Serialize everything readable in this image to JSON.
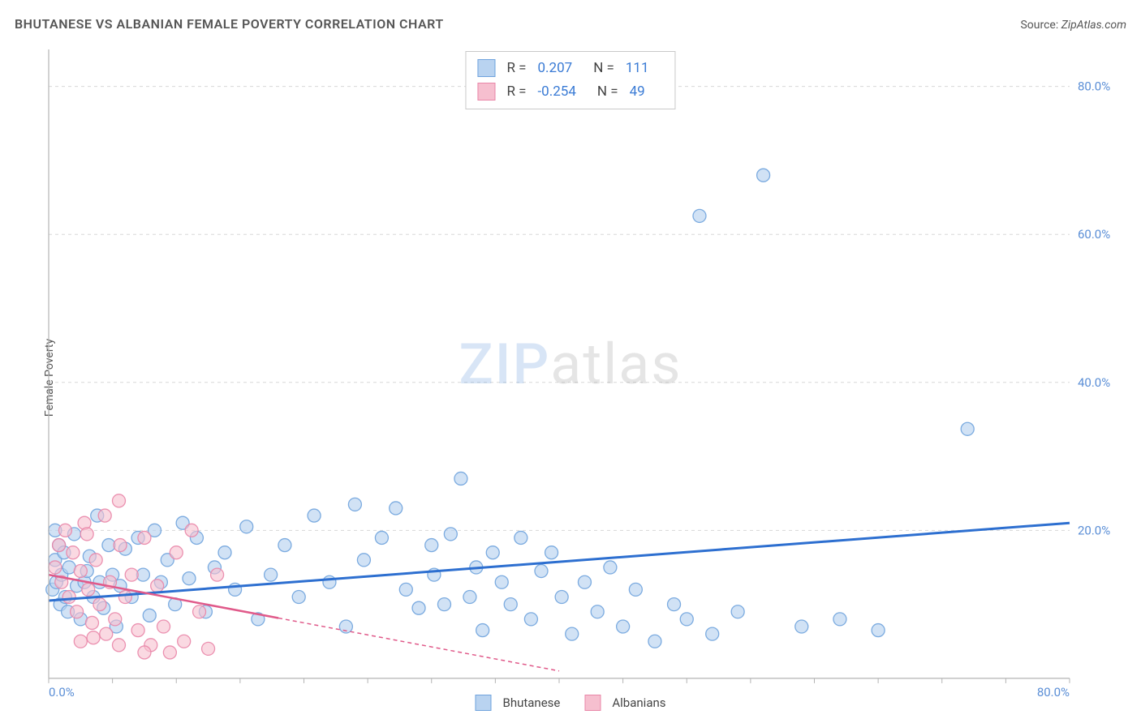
{
  "title": "BHUTANESE VS ALBANIAN FEMALE POVERTY CORRELATION CHART",
  "source_label": "Source:",
  "source_value": "ZipAtlas.com",
  "ylabel": "Female Poverty",
  "watermark_bold": "ZIP",
  "watermark_rest": "atlas",
  "chart": {
    "type": "scatter",
    "xlim": [
      0,
      80
    ],
    "ylim": [
      0,
      85
    ],
    "x_tick_start": 0,
    "x_tick_end": 80,
    "x_tick_step": 5,
    "x_labels": [
      {
        "v": 0,
        "t": "0.0%"
      },
      {
        "v": 80,
        "t": "80.0%"
      }
    ],
    "y_gridlines": [
      20,
      40,
      60,
      80
    ],
    "y_labels": [
      {
        "v": 20,
        "t": "20.0%"
      },
      {
        "v": 40,
        "t": "40.0%"
      },
      {
        "v": 60,
        "t": "60.0%"
      },
      {
        "v": 80,
        "t": "80.0%"
      }
    ],
    "background_color": "#ffffff",
    "grid_color": "#d8d8d8",
    "axis_color": "#b3b3b3",
    "tick_label_color": "#5a8ed6",
    "series": [
      {
        "name": "Bhutanese",
        "marker_fill": "#b9d3f0",
        "marker_stroke": "#6fa3dd",
        "marker_opacity": 0.65,
        "marker_radius": 8,
        "trend_color": "#2d6fd0",
        "trend_width": 3,
        "trend_dash": "none",
        "trend": {
          "x1": 0,
          "y1": 10.5,
          "x2": 80,
          "y2": 21.0,
          "solid_until_x": 80
        },
        "R_label": "R =",
        "R_value": "0.207",
        "N_label": "N =",
        "N_value": "111",
        "points": [
          [
            0.3,
            12
          ],
          [
            0.5,
            16
          ],
          [
            0.6,
            13
          ],
          [
            0.8,
            18
          ],
          [
            0.9,
            10
          ],
          [
            1,
            14
          ],
          [
            1.2,
            17
          ],
          [
            1.3,
            11
          ],
          [
            1.5,
            9
          ],
          [
            1.6,
            15
          ],
          [
            2,
            19.5
          ],
          [
            2.2,
            12.5
          ],
          [
            2.5,
            8
          ],
          [
            2.8,
            13
          ],
          [
            3,
            14.5
          ],
          [
            3.2,
            16.5
          ],
          [
            3.5,
            11
          ],
          [
            3.8,
            22
          ],
          [
            4,
            13
          ],
          [
            4.3,
            9.5
          ],
          [
            4.7,
            18
          ],
          [
            5,
            14
          ],
          [
            5.3,
            7
          ],
          [
            5.6,
            12.5
          ],
          [
            6,
            17.5
          ],
          [
            6.5,
            11
          ],
          [
            7,
            19
          ],
          [
            7.4,
            14
          ],
          [
            7.9,
            8.5
          ],
          [
            8.3,
            20
          ],
          [
            8.8,
            13
          ],
          [
            9.3,
            16
          ],
          [
            9.9,
            10
          ],
          [
            10.5,
            21
          ],
          [
            11,
            13.5
          ],
          [
            11.6,
            19
          ],
          [
            12.3,
            9
          ],
          [
            13,
            15
          ],
          [
            13.8,
            17
          ],
          [
            14.6,
            12
          ],
          [
            15.5,
            20.5
          ],
          [
            16.4,
            8
          ],
          [
            17.4,
            14
          ],
          [
            18.5,
            18
          ],
          [
            19.6,
            11
          ],
          [
            20.8,
            22
          ],
          [
            22,
            13
          ],
          [
            23.3,
            7
          ],
          [
            24.7,
            16
          ],
          [
            26.1,
            19
          ],
          [
            27.2,
            23
          ],
          [
            24,
            23.5
          ],
          [
            28,
            12
          ],
          [
            29,
            9.5
          ],
          [
            30,
            18
          ],
          [
            31,
            10
          ],
          [
            30.2,
            14
          ],
          [
            31.5,
            19.5
          ],
          [
            32.3,
            27
          ],
          [
            33,
            11
          ],
          [
            33.5,
            15
          ],
          [
            34,
            6.5
          ],
          [
            34.8,
            17
          ],
          [
            35.5,
            13
          ],
          [
            36.2,
            10
          ],
          [
            37,
            19
          ],
          [
            37.8,
            8
          ],
          [
            38.6,
            14.5
          ],
          [
            39.4,
            17
          ],
          [
            40.2,
            11
          ],
          [
            41,
            6
          ],
          [
            42,
            13
          ],
          [
            43,
            9
          ],
          [
            44,
            15
          ],
          [
            45,
            7
          ],
          [
            46,
            12
          ],
          [
            47.5,
            5
          ],
          [
            49,
            10
          ],
          [
            50,
            8
          ],
          [
            52,
            6
          ],
          [
            54,
            9
          ],
          [
            56,
            68
          ],
          [
            51,
            62.5
          ],
          [
            59,
            7
          ],
          [
            62,
            8
          ],
          [
            65,
            6.5
          ],
          [
            72,
            33.7
          ],
          [
            0.5,
            20
          ]
        ]
      },
      {
        "name": "Albanians",
        "marker_fill": "#f6bfcf",
        "marker_stroke": "#e986a8",
        "marker_opacity": 0.6,
        "marker_radius": 8,
        "trend_color": "#e05a8a",
        "trend_width": 2.5,
        "trend_dash": "5,4",
        "trend": {
          "x1": 0,
          "y1": 14.0,
          "x2": 40,
          "y2": 1.0,
          "solid_until_x": 18
        },
        "R_label": "R =",
        "R_value": "-0.254",
        "N_label": "N =",
        "N_value": "49",
        "points": [
          [
            0.5,
            15
          ],
          [
            0.8,
            18
          ],
          [
            1,
            13
          ],
          [
            1.3,
            20
          ],
          [
            1.6,
            11
          ],
          [
            1.9,
            17
          ],
          [
            2.2,
            9
          ],
          [
            2.5,
            14.5
          ],
          [
            2.8,
            21
          ],
          [
            3.1,
            12
          ],
          [
            3.4,
            7.5
          ],
          [
            3.7,
            16
          ],
          [
            4,
            10
          ],
          [
            4.4,
            22
          ],
          [
            4.8,
            13
          ],
          [
            5.2,
            8
          ],
          [
            5.6,
            18
          ],
          [
            6,
            11
          ],
          [
            5.5,
            24
          ],
          [
            6.5,
            14
          ],
          [
            7,
            6.5
          ],
          [
            7.5,
            19
          ],
          [
            8,
            4.5
          ],
          [
            8.5,
            12.5
          ],
          [
            9,
            7
          ],
          [
            9.5,
            3.5
          ],
          [
            10,
            17
          ],
          [
            10.6,
            5
          ],
          [
            11.2,
            20
          ],
          [
            11.8,
            9
          ],
          [
            12.5,
            4
          ],
          [
            13.2,
            14
          ],
          [
            2.5,
            5
          ],
          [
            3.5,
            5.5
          ],
          [
            4.5,
            6
          ],
          [
            5.5,
            4.5
          ],
          [
            7.5,
            3.5
          ],
          [
            3,
            19.5
          ]
        ]
      }
    ]
  },
  "legend_bottom": [
    {
      "label": "Bhutanese",
      "fill": "#b9d3f0",
      "stroke": "#6fa3dd"
    },
    {
      "label": "Albanians",
      "fill": "#f6bfcf",
      "stroke": "#e986a8"
    }
  ]
}
